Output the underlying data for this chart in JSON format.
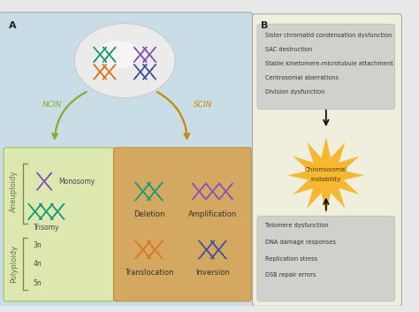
{
  "fig_width": 4.74,
  "fig_height": 3.53,
  "dpi": 100,
  "bg_color": "#e8e8e8",
  "panel_a_bg": "#c8dde5",
  "panel_b_bg": "#f0eedc",
  "green_box_bg": "#dde8b0",
  "orange_box_bg": "#d4a860",
  "top_box_bg": "#d0d0cc",
  "bottom_box_bg": "#d0d0cc",
  "star_color": "#f5b830",
  "title_a": "A",
  "title_b": "B",
  "ncin_label": "NCIN",
  "scin_label": "SCIN",
  "green_arrow_color": "#88aa33",
  "orange_arrow_color": "#cc8800",
  "aneuploidy_label": "Aneuploidy",
  "polyploidy_label": "Polyploidy",
  "monosomy_label": "Monosomy",
  "trisomy_label": "Trisomy",
  "ploidy_3n": "3n",
  "ploidy_4n": "4n",
  "ploidy_5n": "5n",
  "deletion_label": "Deletion",
  "amplification_label": "Amplification",
  "translocation_label": "Translocation",
  "inversion_label": "Inversion",
  "ci_label": "Chromosomal instability",
  "top_lines": [
    "Sister chromatid condensation dysfunction",
    "SAC destruction",
    "Stable kinetomere-microtubule attachment",
    "Centrosomal aberrations",
    "Division dysfunction"
  ],
  "bottom_lines": [
    "Telomere dysfunction",
    "DNA damage responses",
    "Replication stress",
    "DSB repair errors"
  ],
  "chr_teal": "#229977",
  "chr_purple": "#8855bb",
  "chr_orange": "#dd7722",
  "chr_blue": "#445599",
  "chr_green": "#229977"
}
